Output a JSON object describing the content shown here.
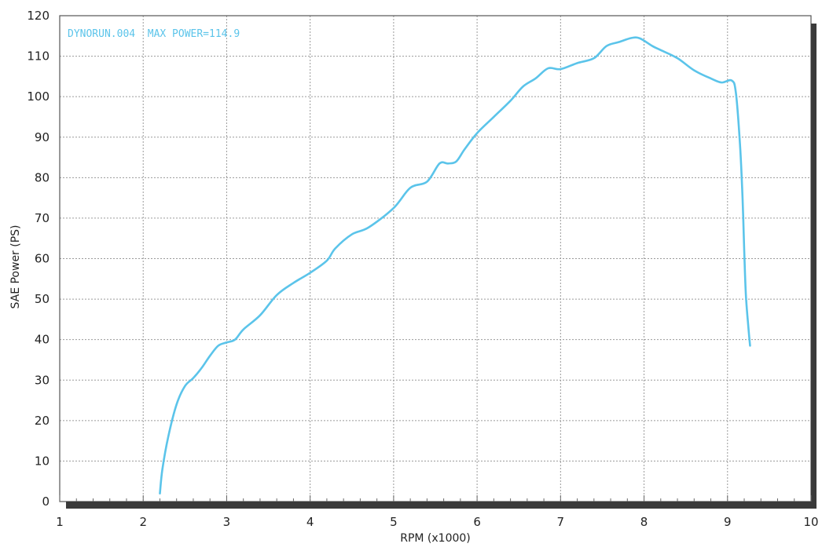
{
  "chart_data": {
    "type": "line",
    "annotation": "DYNORUN.004  MAX POWER=114.9",
    "xlabel": "RPM (x1000)",
    "ylabel": "SAE Power (PS)",
    "xlim": [
      1,
      10
    ],
    "ylim": [
      0,
      120
    ],
    "x_ticks": [
      "1",
      "2",
      "3",
      "4",
      "5",
      "6",
      "7",
      "8",
      "9",
      "10"
    ],
    "y_ticks": [
      "0",
      "10",
      "20",
      "30",
      "40",
      "50",
      "60",
      "70",
      "80",
      "90",
      "100",
      "110",
      "120"
    ],
    "grid": true,
    "series": [
      {
        "color": "#5bc4ea",
        "points": [
          [
            2.2,
            2
          ],
          [
            2.23,
            8
          ],
          [
            2.3,
            16
          ],
          [
            2.4,
            24
          ],
          [
            2.5,
            28.5
          ],
          [
            2.6,
            30.5
          ],
          [
            2.7,
            33
          ],
          [
            2.8,
            36
          ],
          [
            2.9,
            38.5
          ],
          [
            3.0,
            39.3
          ],
          [
            3.1,
            40
          ],
          [
            3.2,
            42.5
          ],
          [
            3.4,
            46
          ],
          [
            3.6,
            51
          ],
          [
            3.8,
            54
          ],
          [
            4.0,
            56.5
          ],
          [
            4.2,
            59.5
          ],
          [
            4.3,
            62.5
          ],
          [
            4.5,
            66
          ],
          [
            4.7,
            67.7
          ],
          [
            5.0,
            72.5
          ],
          [
            5.2,
            77.5
          ],
          [
            5.4,
            79
          ],
          [
            5.55,
            83.5
          ],
          [
            5.65,
            83.5
          ],
          [
            5.75,
            84
          ],
          [
            5.85,
            87
          ],
          [
            6.0,
            91
          ],
          [
            6.2,
            95
          ],
          [
            6.4,
            99
          ],
          [
            6.55,
            102.5
          ],
          [
            6.7,
            104.5
          ],
          [
            6.85,
            107
          ],
          [
            7.0,
            106.8
          ],
          [
            7.2,
            108.3
          ],
          [
            7.4,
            109.5
          ],
          [
            7.55,
            112.5
          ],
          [
            7.7,
            113.5
          ],
          [
            7.85,
            114.5
          ],
          [
            7.95,
            114.4
          ],
          [
            8.1,
            112.5
          ],
          [
            8.2,
            111.5
          ],
          [
            8.4,
            109.5
          ],
          [
            8.6,
            106.5
          ],
          [
            8.8,
            104.5
          ],
          [
            8.93,
            103.5
          ],
          [
            9.05,
            104
          ],
          [
            9.1,
            101
          ],
          [
            9.15,
            88
          ],
          [
            9.18,
            75
          ],
          [
            9.2,
            62
          ],
          [
            9.22,
            51
          ],
          [
            9.25,
            43
          ],
          [
            9.27,
            38.5
          ]
        ]
      }
    ]
  }
}
